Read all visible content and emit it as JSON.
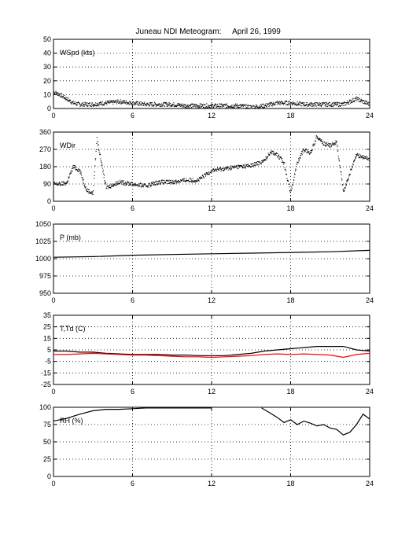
{
  "title": "Juneau NDI Meteogram:",
  "date": "April 26, 1999",
  "colors": {
    "primary": "#000000",
    "dewpoint": "#ff0000",
    "grid": "#000000"
  },
  "chart_data": [
    {
      "type": "scatter",
      "label": "WSpd (kts)",
      "xlim": [
        0,
        24
      ],
      "xticks": [
        0,
        6,
        12,
        18,
        24
      ],
      "ylim": [
        0,
        50
      ],
      "yticks": [
        0,
        10,
        20,
        30,
        40,
        50
      ],
      "grid": true,
      "series": [
        {
          "color": "#000000",
          "x": [
            0,
            0.5,
            1,
            1.5,
            2,
            3,
            4,
            5,
            6,
            7,
            8,
            9,
            10,
            11,
            12,
            13,
            14,
            15,
            16,
            17,
            18,
            19,
            20,
            21,
            22,
            23,
            23.5,
            24
          ],
          "y": [
            12,
            10,
            7,
            4,
            3,
            3,
            4,
            5,
            4,
            3,
            3,
            3,
            2,
            2,
            2,
            2,
            2,
            1,
            2,
            4,
            4,
            3,
            3,
            3,
            3,
            7,
            5,
            3
          ]
        }
      ]
    },
    {
      "type": "scatter",
      "label": "WDir",
      "xlim": [
        0,
        24
      ],
      "xticks": [
        0,
        6,
        12,
        18,
        24
      ],
      "ylim": [
        0,
        360
      ],
      "yticks": [
        0,
        90,
        180,
        270,
        360
      ],
      "grid": true,
      "series": [
        {
          "color": "#000000",
          "x": [
            0,
            0.5,
            1,
            1.5,
            2,
            2.5,
            3,
            3.3,
            4,
            5,
            6,
            7,
            8,
            9,
            10,
            11,
            12,
            13,
            14,
            15,
            16,
            16.5,
            17,
            17.5,
            18,
            18.5,
            19,
            19.5,
            20,
            20.5,
            21,
            21.5,
            22,
            23,
            24
          ],
          "y": [
            90,
            90,
            95,
            180,
            160,
            60,
            40,
            325,
            70,
            100,
            90,
            80,
            100,
            100,
            110,
            110,
            160,
            170,
            180,
            185,
            210,
            260,
            240,
            200,
            40,
            200,
            270,
            250,
            340,
            300,
            290,
            310,
            50,
            240,
            220
          ]
        }
      ]
    },
    {
      "type": "line",
      "label": "P (mb)",
      "xlim": [
        0,
        24
      ],
      "xticks": [
        0,
        6,
        12,
        18,
        24
      ],
      "ylim": [
        950,
        1050
      ],
      "yticks": [
        950,
        975,
        1000,
        1025,
        1050
      ],
      "grid": true,
      "series": [
        {
          "color": "#000000",
          "x": [
            0,
            3,
            6,
            9,
            12,
            15,
            18,
            21,
            24
          ],
          "y": [
            1002,
            1003,
            1005,
            1006,
            1007,
            1008,
            1009,
            1010,
            1012
          ]
        }
      ]
    },
    {
      "type": "line",
      "label": "T,Td (C)",
      "xlim": [
        0,
        24
      ],
      "xticks": [
        0,
        6,
        12,
        18,
        24
      ],
      "ylim": [
        -25,
        35
      ],
      "yticks": [
        -25,
        -15,
        -5,
        5,
        15,
        25,
        35
      ],
      "grid": true,
      "series": [
        {
          "color": "#000000",
          "x": [
            0,
            1,
            2,
            3,
            4,
            5,
            6,
            7,
            8,
            9,
            10,
            11,
            12,
            13,
            14,
            15,
            16,
            17,
            18,
            19,
            20,
            21,
            22,
            23,
            24
          ],
          "y": [
            4,
            4,
            3,
            3,
            2,
            1.5,
            1,
            1,
            1,
            0.5,
            0.5,
            0,
            0,
            0,
            1,
            2,
            4,
            5,
            6,
            7,
            8,
            8,
            8,
            5,
            4
          ]
        },
        {
          "color": "#ff0000",
          "x": [
            0,
            1,
            2,
            3,
            4,
            5,
            6,
            7,
            8,
            9,
            10,
            11,
            12,
            13,
            14,
            15,
            16,
            17,
            18,
            19,
            20,
            21,
            22,
            23,
            24
          ],
          "y": [
            1,
            1,
            1.5,
            2,
            1.5,
            1,
            0.5,
            0.5,
            0,
            -0.5,
            -1,
            -1,
            -1.5,
            -1,
            -0.5,
            0,
            1,
            1.5,
            1,
            1.5,
            1,
            0.5,
            -1.5,
            1,
            2
          ]
        }
      ]
    },
    {
      "type": "line",
      "label": "RH (%)",
      "xlim": [
        0,
        24
      ],
      "xticks": [
        0,
        6,
        12,
        18,
        24
      ],
      "ylim": [
        0,
        100
      ],
      "yticks": [
        0,
        25,
        50,
        75,
        100
      ],
      "grid": true,
      "series": [
        {
          "color": "#000000",
          "x": [
            0,
            1,
            2,
            3,
            4,
            5,
            6,
            7,
            8,
            9,
            10,
            11,
            12,
            null,
            15.8,
            16.5,
            17,
            17.5,
            18,
            18.5,
            19,
            19.5,
            20,
            20.5,
            21,
            21.5,
            22,
            22.5,
            23,
            23.5,
            24
          ],
          "y": [
            80,
            84,
            90,
            95,
            97,
            97,
            98,
            99,
            99,
            99,
            99,
            99,
            99,
            null,
            99,
            91,
            85,
            78,
            82,
            75,
            80,
            77,
            73,
            75,
            70,
            68,
            60,
            64,
            75,
            90,
            83
          ]
        }
      ]
    }
  ]
}
